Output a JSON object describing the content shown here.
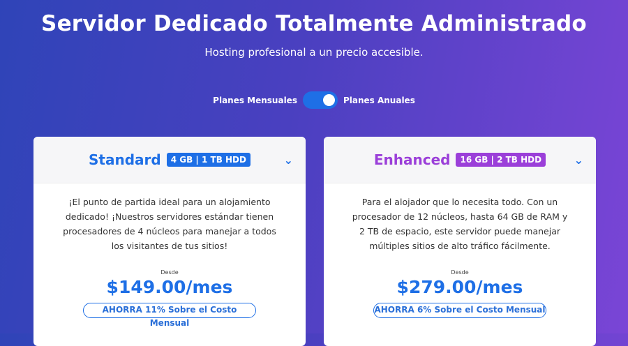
{
  "header": {
    "title": "Servidor Dedicado Totalmente Administrado",
    "subtitle": "Hosting profesional a un precio accesible."
  },
  "billing_toggle": {
    "left_label": "Planes Mensuales",
    "right_label": "Planes Anuales",
    "selected": "Planes Anuales"
  },
  "plans": [
    {
      "name": "Standard",
      "badge": "4 GB | 1 TB HDD",
      "color": "#1e6fe6",
      "description": "¡El punto de partida ideal para un alojamiento dedicado! ¡Nuestros servidores estándar tienen procesadores de 4 núcleos para manejar a todos los visitantes de tus sitios!",
      "from_label": "Desde",
      "price": "$149.00/mes",
      "savings": "AHORRA 11% Sobre el Costo Mensual",
      "expand_icon": "chevron-down-icon"
    },
    {
      "name": "Enhanced",
      "badge": "16 GB | 2 TB HDD",
      "color": "#9b3fd9",
      "description": "Para el alojador que lo necesita todo. Con un procesador de 12 núcleos, hasta 64 GB de RAM y 2 TB de espacio, este servidor puede manejar múltiples sitios de alto tráfico fácilmente.",
      "from_label": "Desde",
      "price": "$279.00/mes",
      "savings": "AHORRA 6% Sobre el Costo Mensual",
      "expand_icon": "chevron-down-icon"
    }
  ]
}
